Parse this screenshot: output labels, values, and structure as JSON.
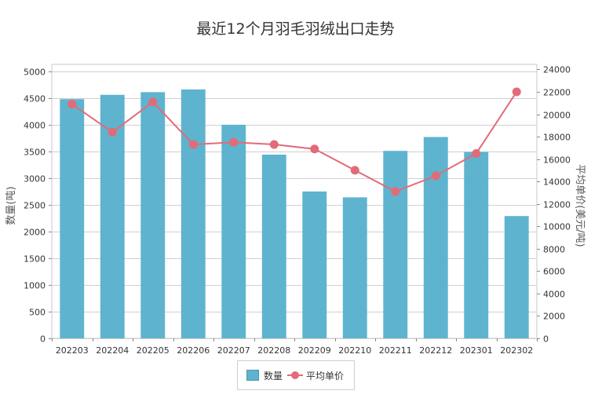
{
  "chart_data": {
    "type": "bar",
    "title": "最近12个月羽毛羽绒出口走势",
    "categories": [
      "202203",
      "202204",
      "202205",
      "202206",
      "202207",
      "202208",
      "202209",
      "202210",
      "202211",
      "202212",
      "202301",
      "202302"
    ],
    "series": [
      {
        "name": "数量",
        "type": "bar",
        "axis": "left",
        "color": "#5eb4cf",
        "values": [
          4480,
          4560,
          4610,
          4660,
          4000,
          3440,
          2750,
          2640,
          3510,
          3770,
          3490,
          2290
        ]
      },
      {
        "name": "平均单价",
        "type": "line",
        "axis": "right",
        "color": "#e26b78",
        "values": [
          20900,
          18400,
          21100,
          17300,
          17500,
          17300,
          16900,
          15000,
          13100,
          14500,
          16500,
          22000
        ]
      }
    ],
    "ylabel": "数量(吨)",
    "y2label": "平均单价(美元/吨)",
    "ylim": [
      0,
      5000
    ],
    "y2lim": [
      0,
      24000
    ],
    "yticks": [
      "0",
      "500",
      "1000",
      "1500",
      "2000",
      "2500",
      "3000",
      "3500",
      "4000",
      "4500",
      "5000"
    ],
    "y2ticks": [
      "0",
      "2000",
      "4000",
      "6000",
      "8000",
      "10000",
      "12000",
      "14000",
      "16000",
      "18000",
      "20000",
      "22000",
      "24000"
    ],
    "grid": true,
    "legend_position": "bottom"
  }
}
